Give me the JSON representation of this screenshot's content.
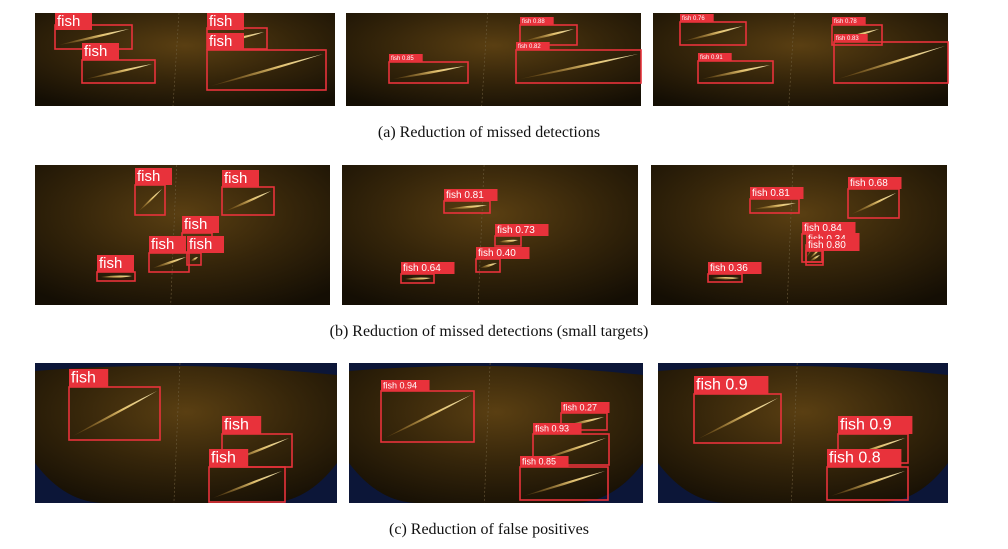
{
  "figure": {
    "rows": [
      {
        "caption": "(a)  Reduction of missed detections",
        "panels": [
          {
            "detections": [
              "fish",
              "fish",
              "fish",
              "fish"
            ]
          },
          {
            "detections": [
              "fish 0.88",
              "fish 0.82",
              "fish 0.85"
            ]
          },
          {
            "detections": [
              "fish 0.76",
              "fish 0.78",
              "fish 0.83",
              "fish 0.91"
            ]
          }
        ]
      },
      {
        "caption": "(b)  Reduction of missed detections (small targets)",
        "panels": [
          {
            "detections": [
              "fish",
              "fish",
              "fish",
              "fish",
              "fish",
              "fish"
            ]
          },
          {
            "detections": [
              "fish 0.81",
              "fish 0.73",
              "fish 0.40",
              "fish 0.64"
            ]
          },
          {
            "detections": [
              "fish 0.81",
              "fish 0.68",
              "fish 0.84",
              "fish 0.34",
              "fish 0.80",
              "fish 0.36"
            ]
          }
        ]
      },
      {
        "caption": "(c)  Reduction of false positives",
        "panels": [
          {
            "detections": [
              "fish",
              "fish",
              "fish"
            ]
          },
          {
            "detections": [
              "fish 0.94",
              "fish 0.27",
              "fish 0.93",
              "fish 0.85"
            ]
          },
          {
            "detections": [
              "fish 0.9",
              "fish 0.9",
              "fish 0.8"
            ]
          }
        ]
      }
    ]
  }
}
